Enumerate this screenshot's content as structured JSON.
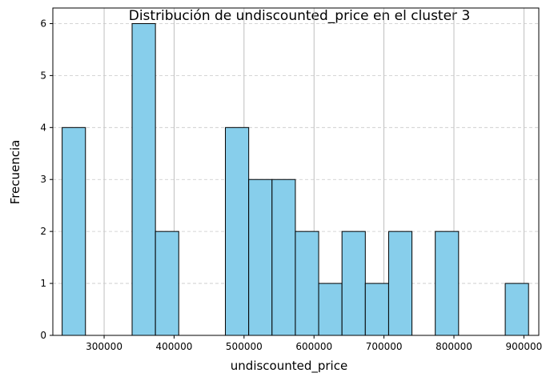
{
  "chart_data": {
    "type": "bar",
    "title": "Distribución de undiscounted_price en el cluster 3",
    "xlabel": "undiscounted_price",
    "ylabel": "Frecuencia",
    "xlim": [
      226700,
      921300
    ],
    "ylim": [
      0,
      6.3
    ],
    "xticks": [
      300000,
      400000,
      500000,
      600000,
      700000,
      800000,
      900000
    ],
    "yticks": [
      0,
      1,
      2,
      3,
      4,
      5,
      6
    ],
    "bin_edges": [
      240000,
      273333,
      306667,
      340000,
      373333,
      406667,
      440000,
      473333,
      506667,
      540000,
      573333,
      606667,
      640000,
      673333,
      706667,
      740000,
      773333,
      806667,
      840000,
      873333,
      906667
    ],
    "counts": [
      4,
      0,
      0,
      6,
      2,
      0,
      0,
      4,
      3,
      3,
      2,
      1,
      2,
      1,
      2,
      0,
      2,
      0,
      0,
      1
    ],
    "grid": true,
    "colors": {
      "bar_fill": "#87ceeb",
      "bar_edge": "#000000",
      "grid": "#b0b0b0"
    }
  }
}
